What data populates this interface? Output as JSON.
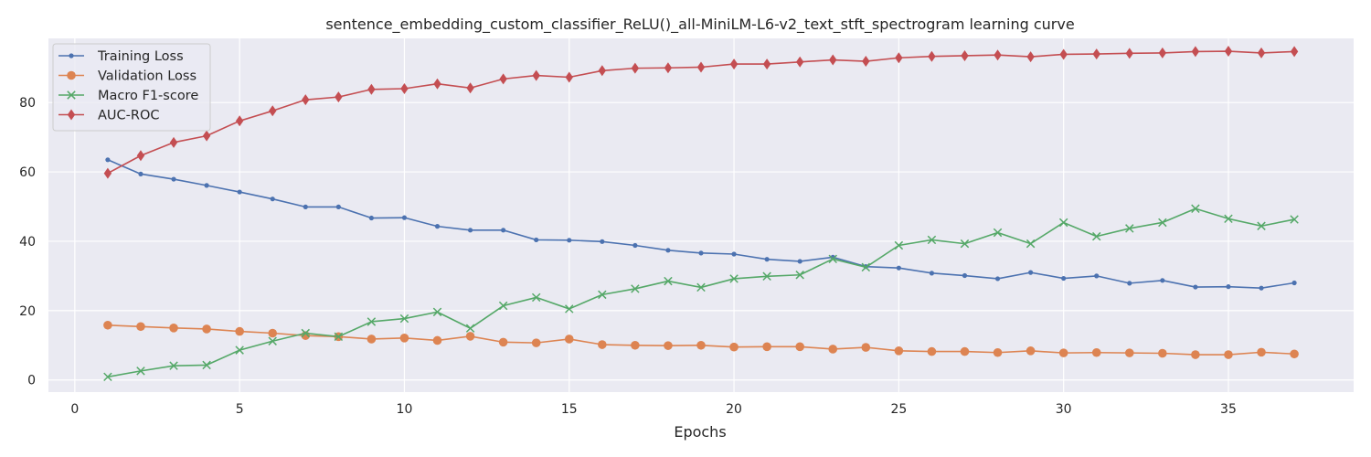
{
  "chart_data": {
    "type": "line",
    "title": "sentence_embedding_custom_classifier_ReLU()_all-MiniLM-L6-v2_text_stft_spectrogram learning curve",
    "xlabel": "Epochs",
    "ylabel": "",
    "xlim": [
      -0.8,
      38.8
    ],
    "ylim": [
      -3.5,
      98.5
    ],
    "x_ticks": [
      0,
      5,
      10,
      15,
      20,
      25,
      30,
      35
    ],
    "y_ticks": [
      0,
      20,
      40,
      60,
      80
    ],
    "grid": true,
    "legend_position": "upper-left",
    "background": "#eaeaf2",
    "x": [
      1,
      2,
      3,
      4,
      5,
      6,
      7,
      8,
      9,
      10,
      11,
      12,
      13,
      14,
      15,
      16,
      17,
      18,
      19,
      20,
      21,
      22,
      23,
      24,
      25,
      26,
      27,
      28,
      29,
      30,
      31,
      32,
      33,
      34,
      35,
      36,
      37
    ],
    "series": [
      {
        "name": "Training Loss",
        "color": "#4c72b0",
        "marker": "dot",
        "values": [
          63.5,
          59.4,
          57.9,
          56.1,
          54.2,
          52.2,
          49.9,
          49.9,
          46.7,
          46.8,
          44.3,
          43.2,
          43.2,
          40.4,
          40.3,
          39.9,
          38.8,
          37.4,
          36.6,
          36.3,
          34.8,
          34.2,
          35.4,
          32.7,
          32.3,
          30.8,
          30.1,
          29.2,
          31.0,
          29.3,
          30.0,
          27.9,
          28.7,
          26.8,
          26.9,
          26.5,
          28.0
        ]
      },
      {
        "name": "Validation Loss",
        "color": "#dd8452",
        "marker": "circle",
        "values": [
          15.8,
          15.4,
          15.0,
          14.7,
          14.0,
          13.5,
          12.8,
          12.5,
          11.8,
          12.1,
          11.4,
          12.6,
          10.9,
          10.7,
          11.8,
          10.2,
          10.0,
          9.9,
          10.0,
          9.5,
          9.6,
          9.6,
          8.9,
          9.4,
          8.4,
          8.2,
          8.2,
          7.9,
          8.4,
          7.8,
          7.9,
          7.8,
          7.7,
          7.3,
          7.3,
          8.0,
          7.5
        ]
      },
      {
        "name": "Macro F1-score",
        "color": "#55a868",
        "marker": "x",
        "values": [
          0.9,
          2.6,
          4.1,
          4.3,
          8.6,
          11.2,
          13.5,
          12.5,
          16.8,
          17.7,
          19.6,
          14.9,
          21.4,
          23.8,
          20.5,
          24.6,
          26.3,
          28.5,
          26.7,
          29.2,
          29.9,
          30.3,
          34.9,
          32.5,
          38.8,
          40.4,
          39.3,
          42.5,
          39.3,
          45.4,
          41.4,
          43.7,
          45.4,
          49.4,
          46.5,
          44.4,
          46.3
        ]
      },
      {
        "name": "AUC-ROC",
        "color": "#c44e52",
        "marker": "diamond",
        "values": [
          59.6,
          64.7,
          68.5,
          70.4,
          74.7,
          77.6,
          80.8,
          81.6,
          83.8,
          84.0,
          85.4,
          84.2,
          86.8,
          87.8,
          87.3,
          89.2,
          89.9,
          90.0,
          90.2,
          91.1,
          91.1,
          91.7,
          92.3,
          91.9,
          92.9,
          93.3,
          93.5,
          93.7,
          93.2,
          93.9,
          94.0,
          94.2,
          94.3,
          94.7,
          94.8,
          94.3,
          94.7
        ]
      }
    ]
  }
}
